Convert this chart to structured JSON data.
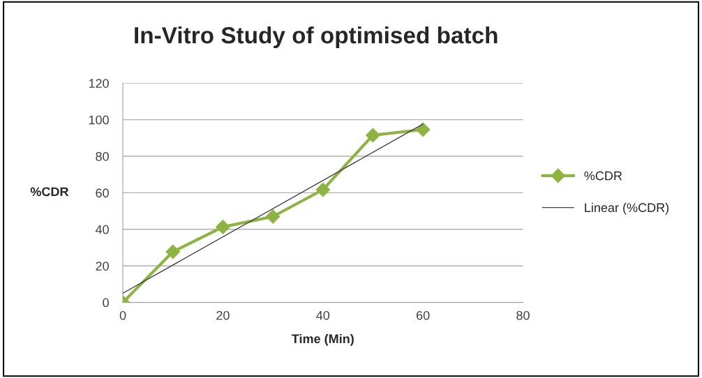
{
  "chart_data": {
    "type": "line",
    "title": "In-Vitro Study of optimised batch",
    "xlabel": "Time (Min)",
    "ylabel": "%CDR",
    "series": [
      {
        "name": "%CDR",
        "color": "#8db443",
        "x": [
          0,
          10,
          20,
          30,
          40,
          50,
          60
        ],
        "values": [
          0,
          27.7,
          41.3,
          47,
          61.7,
          91.5,
          94.6
        ],
        "marker": "diamond",
        "line_style": "solid"
      },
      {
        "name": "Linear (%CDR)",
        "color": "#404040",
        "x": [
          0,
          60
        ],
        "values": [
          5,
          97.6
        ],
        "marker": "none",
        "line_style": "solid"
      }
    ],
    "xlim": [
      0,
      80
    ],
    "xticks": [
      0,
      20,
      40,
      60,
      80
    ],
    "ylim": [
      0,
      120
    ],
    "yticks": [
      0,
      20,
      40,
      60,
      80,
      100,
      120
    ],
    "grid": "y",
    "legend": "right"
  }
}
